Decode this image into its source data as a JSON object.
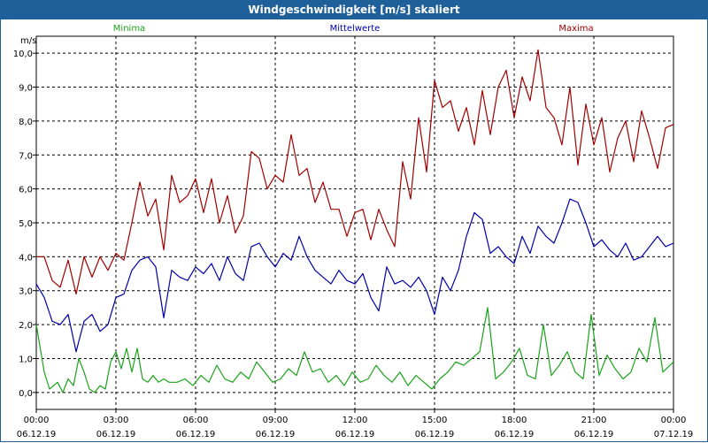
{
  "window": {
    "title": "Windgeschwindigkeit [m/s] skaliert"
  },
  "colors": {
    "minima": "#1aa31a",
    "mittel": "#0000aa",
    "maxima": "#a00000",
    "titlebar": "#1f5f9a"
  },
  "chart_data": {
    "type": "line",
    "title": "Windgeschwindigkeit [m/s] skaliert",
    "ylabel": "m/s",
    "xlabel": "",
    "ylim": [
      -0.5,
      10.5
    ],
    "yticks": [
      0.0,
      1.0,
      2.0,
      3.0,
      4.0,
      5.0,
      6.0,
      7.0,
      8.0,
      9.0,
      10.0
    ],
    "ytick_labels": [
      "0,0",
      "1,0",
      "2,0",
      "3,0",
      "4,0",
      "5,0",
      "6,0",
      "7,0",
      "8,0",
      "9,0",
      "10,0"
    ],
    "xlim": [
      0,
      24
    ],
    "xticks": [
      0,
      3,
      6,
      9,
      12,
      15,
      18,
      21,
      24
    ],
    "xtick_labels": [
      {
        "time": "00:00",
        "date": "06.12.19"
      },
      {
        "time": "03:00",
        "date": "06.12.19"
      },
      {
        "time": "06:00",
        "date": "06.12.19"
      },
      {
        "time": "09:00",
        "date": "06.12.19"
      },
      {
        "time": "12:00",
        "date": "06.12.19"
      },
      {
        "time": "15:00",
        "date": "06.12.19"
      },
      {
        "time": "18:00",
        "date": "06.12.19"
      },
      {
        "time": "21:00",
        "date": "06.12.19"
      },
      {
        "time": "00:00",
        "date": "07.12.19"
      }
    ],
    "grid": true,
    "legend_position": "top",
    "series": [
      {
        "name": "Minima",
        "x": [
          0,
          0.3,
          0.5,
          0.8,
          1.0,
          1.2,
          1.4,
          1.6,
          1.8,
          2.0,
          2.2,
          2.4,
          2.6,
          2.8,
          3.0,
          3.2,
          3.4,
          3.6,
          3.8,
          4.0,
          4.2,
          4.4,
          4.6,
          4.8,
          5.0,
          5.3,
          5.6,
          5.9,
          6.2,
          6.5,
          6.8,
          7.1,
          7.4,
          7.7,
          8.0,
          8.3,
          8.6,
          8.9,
          9.2,
          9.5,
          9.8,
          10.1,
          10.4,
          10.7,
          11.0,
          11.3,
          11.6,
          11.9,
          12.2,
          12.5,
          12.8,
          13.1,
          13.4,
          13.7,
          14.0,
          14.3,
          14.6,
          14.9,
          15.2,
          15.5,
          15.8,
          16.1,
          16.4,
          16.7,
          17.0,
          17.3,
          17.6,
          17.9,
          18.2,
          18.5,
          18.8,
          19.1,
          19.4,
          19.7,
          20.0,
          20.3,
          20.6,
          20.9,
          21.2,
          21.5,
          21.8,
          22.1,
          22.4,
          22.7,
          23.0,
          23.3,
          23.6,
          24.0
        ],
        "values": [
          2.0,
          0.6,
          0.1,
          0.3,
          0.0,
          0.4,
          0.2,
          1.0,
          0.6,
          0.1,
          0.0,
          0.2,
          0.1,
          0.9,
          1.2,
          0.7,
          1.3,
          0.6,
          1.3,
          0.4,
          0.3,
          0.5,
          0.3,
          0.4,
          0.3,
          0.3,
          0.4,
          0.2,
          0.5,
          0.3,
          0.8,
          0.4,
          0.3,
          0.6,
          0.4,
          0.9,
          0.6,
          0.3,
          0.4,
          0.7,
          0.5,
          1.2,
          0.6,
          0.7,
          0.3,
          0.5,
          0.2,
          0.6,
          0.3,
          0.4,
          0.8,
          0.5,
          0.3,
          0.6,
          0.2,
          0.5,
          0.3,
          0.1,
          0.4,
          0.6,
          0.9,
          0.8,
          1.0,
          1.2,
          2.5,
          0.4,
          0.6,
          0.9,
          1.3,
          0.5,
          0.4,
          2.0,
          0.5,
          0.8,
          1.2,
          0.6,
          0.4,
          2.3,
          0.5,
          1.1,
          0.7,
          0.4,
          0.6,
          1.3,
          0.9,
          2.2,
          0.6,
          0.9
        ]
      },
      {
        "name": "Mittelwerte",
        "x": [
          0,
          0.3,
          0.6,
          0.9,
          1.2,
          1.5,
          1.8,
          2.1,
          2.4,
          2.7,
          3.0,
          3.3,
          3.6,
          3.9,
          4.2,
          4.5,
          4.8,
          5.1,
          5.4,
          5.7,
          6.0,
          6.3,
          6.6,
          6.9,
          7.2,
          7.5,
          7.8,
          8.1,
          8.4,
          8.7,
          9.0,
          9.3,
          9.6,
          9.9,
          10.2,
          10.5,
          10.8,
          11.1,
          11.4,
          11.7,
          12.0,
          12.3,
          12.6,
          12.9,
          13.2,
          13.5,
          13.8,
          14.1,
          14.4,
          14.7,
          15.0,
          15.3,
          15.6,
          15.9,
          16.2,
          16.5,
          16.8,
          17.1,
          17.4,
          17.7,
          18.0,
          18.3,
          18.6,
          18.9,
          19.2,
          19.5,
          19.8,
          20.1,
          20.4,
          20.7,
          21.0,
          21.3,
          21.6,
          21.9,
          22.2,
          22.5,
          22.8,
          23.1,
          23.4,
          23.7,
          24.0
        ],
        "values": [
          3.2,
          2.8,
          2.1,
          2.0,
          2.3,
          1.2,
          2.1,
          2.3,
          1.8,
          2.0,
          2.8,
          2.9,
          3.6,
          3.9,
          4.0,
          3.7,
          2.2,
          3.6,
          3.4,
          3.3,
          3.7,
          3.5,
          3.8,
          3.3,
          4.0,
          3.5,
          3.3,
          4.3,
          4.4,
          4.0,
          3.7,
          4.1,
          3.9,
          4.6,
          4.0,
          3.6,
          3.4,
          3.2,
          3.6,
          3.3,
          3.2,
          3.5,
          2.8,
          2.4,
          3.7,
          3.2,
          3.3,
          3.1,
          3.4,
          3.0,
          2.3,
          3.4,
          3.0,
          3.6,
          4.6,
          5.3,
          5.1,
          4.1,
          4.3,
          4.0,
          3.8,
          4.6,
          4.1,
          4.9,
          4.6,
          4.4,
          5.0,
          5.7,
          5.6,
          5.0,
          4.3,
          4.5,
          4.2,
          4.0,
          4.4,
          3.9,
          4.0,
          4.3,
          4.6,
          4.3,
          4.4
        ]
      },
      {
        "name": "Maxima",
        "x": [
          0,
          0.3,
          0.6,
          0.9,
          1.2,
          1.5,
          1.8,
          2.1,
          2.4,
          2.7,
          3.0,
          3.3,
          3.6,
          3.9,
          4.2,
          4.5,
          4.8,
          5.1,
          5.4,
          5.7,
          6.0,
          6.3,
          6.6,
          6.9,
          7.2,
          7.5,
          7.8,
          8.1,
          8.4,
          8.7,
          9.0,
          9.3,
          9.6,
          9.9,
          10.2,
          10.5,
          10.8,
          11.1,
          11.4,
          11.7,
          12.0,
          12.3,
          12.6,
          12.9,
          13.2,
          13.5,
          13.8,
          14.1,
          14.4,
          14.7,
          15.0,
          15.3,
          15.6,
          15.9,
          16.2,
          16.5,
          16.8,
          17.1,
          17.4,
          17.7,
          18.0,
          18.3,
          18.6,
          18.9,
          19.2,
          19.5,
          19.8,
          20.1,
          20.4,
          20.7,
          21.0,
          21.3,
          21.6,
          21.9,
          22.2,
          22.5,
          22.8,
          23.1,
          23.4,
          23.7,
          24.0
        ],
        "values": [
          4.0,
          4.0,
          3.3,
          3.1,
          3.9,
          2.9,
          4.0,
          3.4,
          4.0,
          3.6,
          4.1,
          3.9,
          5.0,
          6.2,
          5.2,
          5.7,
          4.2,
          6.4,
          5.6,
          5.8,
          6.3,
          5.3,
          6.3,
          5.0,
          5.8,
          4.7,
          5.2,
          7.1,
          6.9,
          6.0,
          6.4,
          6.2,
          7.6,
          6.4,
          6.6,
          5.6,
          6.2,
          5.4,
          5.4,
          4.6,
          5.3,
          5.4,
          4.5,
          5.4,
          4.8,
          4.3,
          6.8,
          5.7,
          8.1,
          6.5,
          9.2,
          8.4,
          8.6,
          7.7,
          8.4,
          7.3,
          8.9,
          7.6,
          9.0,
          9.5,
          8.1,
          9.3,
          8.6,
          10.1,
          8.4,
          8.1,
          7.3,
          9.0,
          6.7,
          8.5,
          7.3,
          8.1,
          6.5,
          7.5,
          8.0,
          6.8,
          8.3,
          7.5,
          6.6,
          7.8,
          7.9
        ]
      }
    ]
  }
}
